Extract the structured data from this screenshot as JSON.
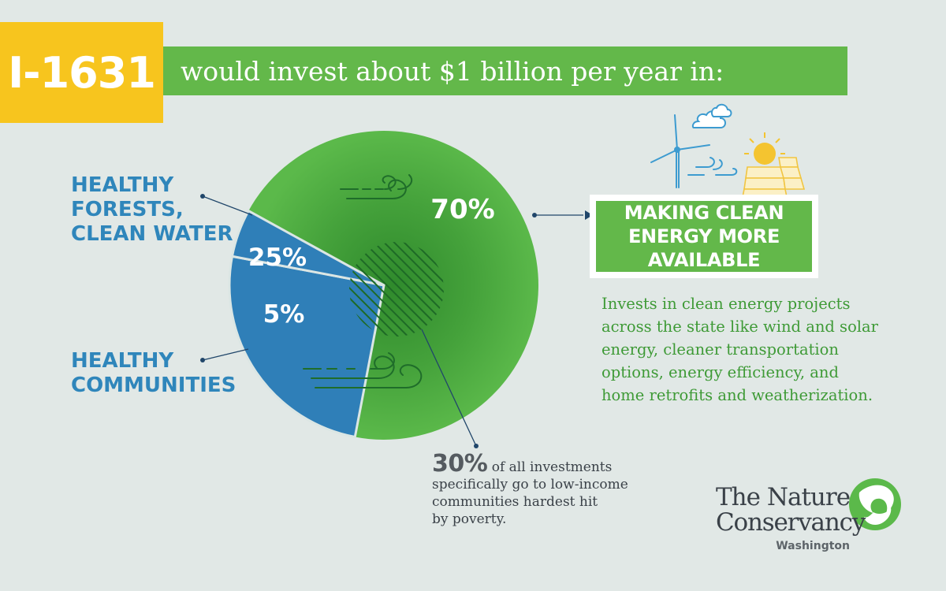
{
  "header": {
    "badge_text": "I-1631",
    "banner_text": "would invest about $1 billion per year in:"
  },
  "chart_data": {
    "type": "pie",
    "slices": [
      {
        "label": "MAKING CLEAN ENERGY MORE AVAILABLE",
        "value": 70,
        "value_label": "70%",
        "color": "#4aa63f"
      },
      {
        "label": "HEALTHY FORESTS, CLEAN WATER",
        "value": 25,
        "value_label": "25%",
        "color": "#2f7fb8"
      },
      {
        "label": "HEALTHY COMMUNITIES",
        "value": 5,
        "value_label": "5%",
        "color": "#2f7fb8"
      }
    ],
    "annotation": {
      "value": 30,
      "value_label": "30%"
    }
  },
  "labels": {
    "forests": "HEALTHY\nFORESTS,\nCLEAN WATER",
    "communities": "HEALTHY\nCOMMUNITIES",
    "clean_energy": "MAKING CLEAN\nENERGY MORE\nAVAILABLE"
  },
  "clean_energy_description": "Invests in clean energy projects\nacross the state like wind and solar\nenergy, cleaner transportation\noptions, energy efficiency, and\nhome retrofits and weatherization.",
  "note": {
    "big": "30%",
    "text": " of all investments\nspecifically go to low-income\ncommunities hardest hit\nby poverty."
  },
  "logo": {
    "line1": "The Nature",
    "line2": "Conservancy",
    "sub": "Washington"
  },
  "colors": {
    "yellow": "#f7c51e",
    "green": "#63b84a",
    "pie_green": "#4aa63f",
    "blue": "#2f7fb8",
    "background": "#e1e8e6"
  }
}
